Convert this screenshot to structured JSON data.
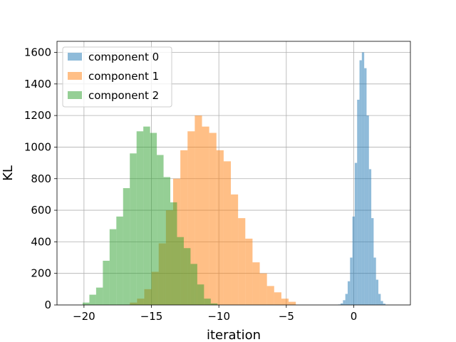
{
  "chart_data": {
    "type": "histogram",
    "xlabel": "iteration",
    "ylabel": "KL",
    "xlim": [
      -22,
      4.2
    ],
    "ylim": [
      0,
      1670
    ],
    "xticks": [
      -20,
      -15,
      -10,
      -5,
      0
    ],
    "xtick_labels": [
      "−20",
      "−15",
      "−10",
      "−5",
      "0"
    ],
    "yticks": [
      0,
      200,
      400,
      600,
      800,
      1000,
      1200,
      1400,
      1600
    ],
    "ytick_labels": [
      "0",
      "200",
      "400",
      "600",
      "800",
      "1000",
      "1200",
      "1400",
      "1600"
    ],
    "grid": true,
    "legend_position": "upper left",
    "series": [
      {
        "name": "component 0",
        "color": "#1f77b4",
        "alpha": 0.5,
        "bin_start": -1.15,
        "bin_width": 0.175,
        "values": [
          3,
          10,
          30,
          70,
          150,
          300,
          560,
          900,
          1300,
          1550,
          1600,
          1500,
          1200,
          860,
          550,
          300,
          160,
          70,
          25,
          8
        ]
      },
      {
        "name": "component 1",
        "color": "#ff7f0e",
        "alpha": 0.5,
        "bin_start": -16.6,
        "bin_width": 0.535,
        "values": [
          15,
          40,
          100,
          210,
          390,
          600,
          800,
          980,
          1100,
          1200,
          1130,
          1090,
          980,
          910,
          700,
          550,
          420,
          270,
          200,
          120,
          80,
          40,
          20
        ]
      },
      {
        "name": "component 2",
        "color": "#2ca02c",
        "alpha": 0.5,
        "bin_start": -20.1,
        "bin_width": 0.5,
        "values": [
          15,
          65,
          110,
          280,
          480,
          560,
          740,
          960,
          1100,
          1130,
          1090,
          950,
          810,
          650,
          430,
          360,
          260,
          130,
          40,
          10
        ]
      }
    ]
  }
}
